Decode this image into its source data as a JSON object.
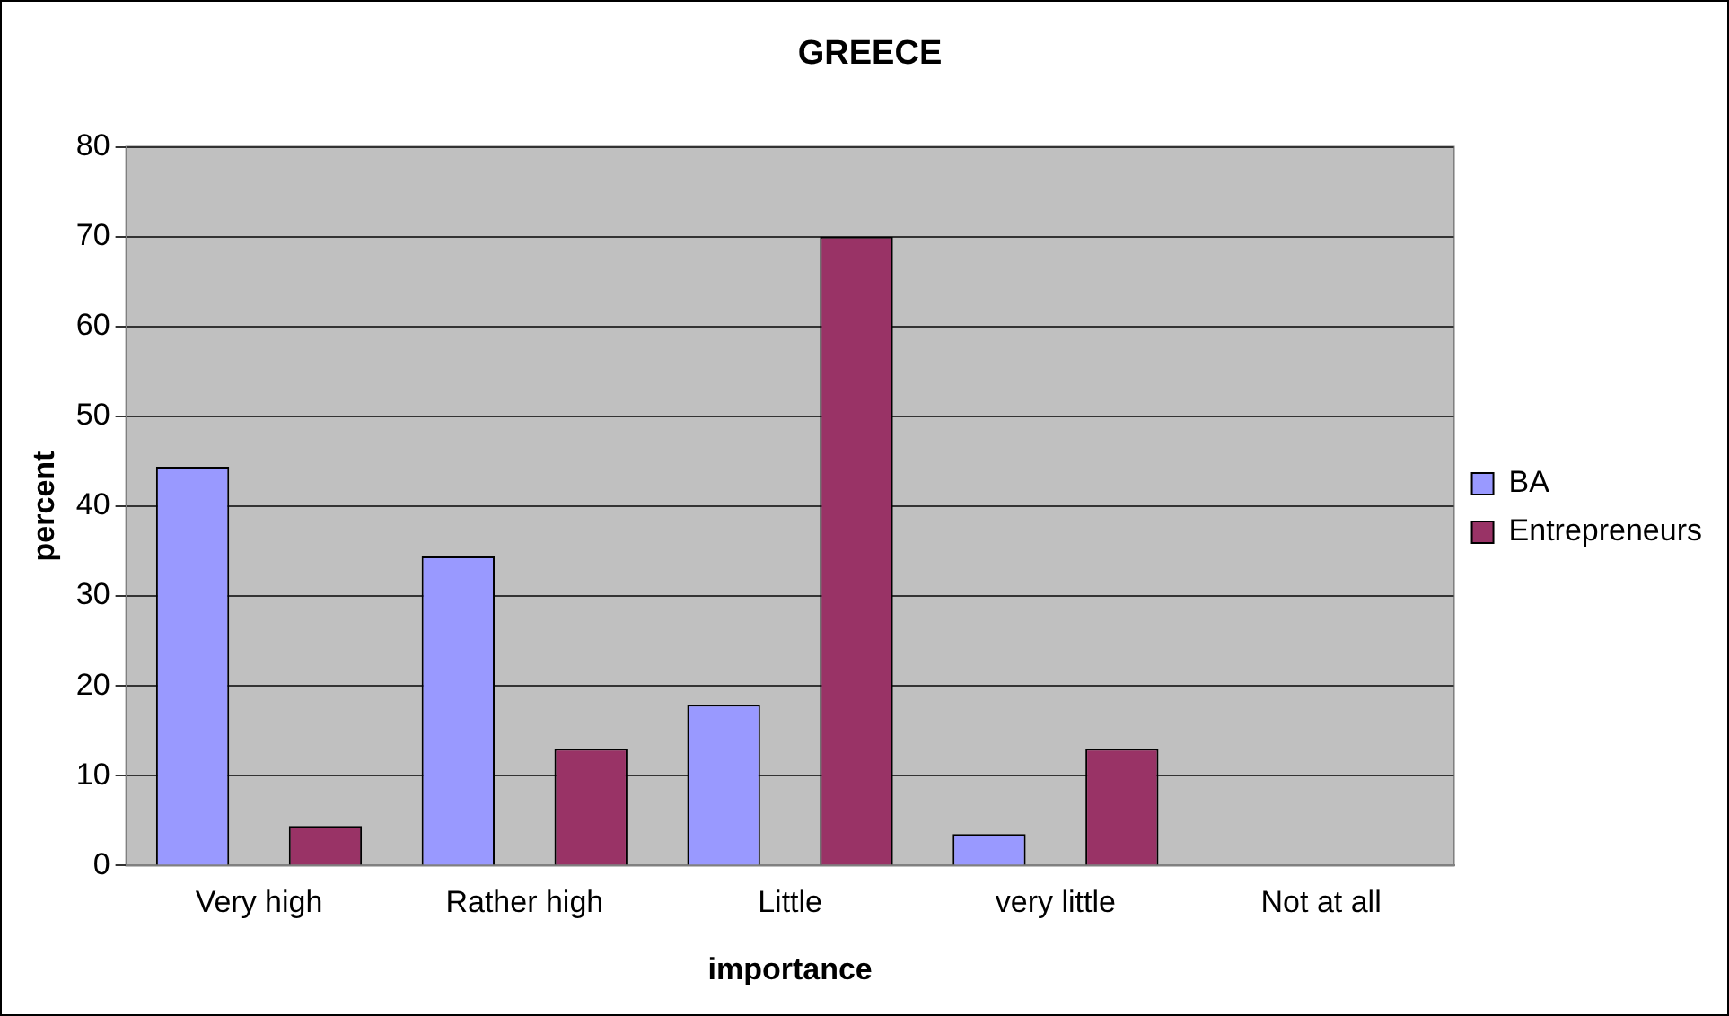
{
  "chart_data": {
    "type": "bar",
    "title": "GREECE",
    "xlabel": "importance",
    "ylabel": "percent",
    "categories": [
      "Very high",
      "Rather high",
      "Little",
      "very little",
      "Not at all"
    ],
    "series": [
      {
        "name": "BA",
        "color": "#9999ff",
        "values": [
          44.4,
          34.4,
          17.9,
          3.5,
          0
        ]
      },
      {
        "name": "Entrepreneurs",
        "color": "#993366",
        "values": [
          4.4,
          13,
          70,
          13,
          0
        ]
      }
    ],
    "ylim": [
      0,
      80
    ],
    "yticks": [
      0,
      10,
      20,
      30,
      40,
      50,
      60,
      70,
      80
    ],
    "grid": "y",
    "legend": "right"
  }
}
